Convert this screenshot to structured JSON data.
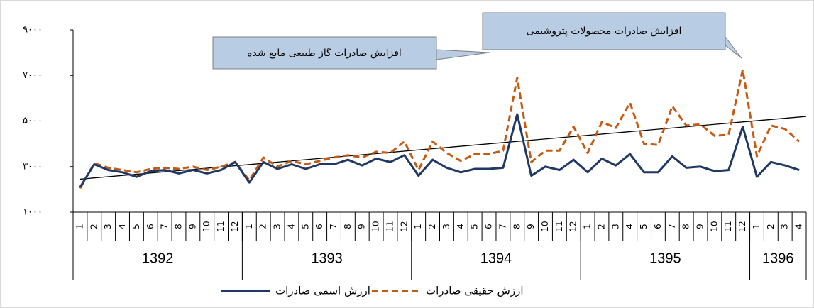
{
  "chart_data": {
    "type": "line",
    "categories": [
      "1",
      "2",
      "3",
      "4",
      "5",
      "6",
      "7",
      "8",
      "9",
      "10",
      "11",
      "12",
      "1",
      "2",
      "3",
      "4",
      "5",
      "6",
      "7",
      "8",
      "9",
      "10",
      "11",
      "12",
      "1",
      "2",
      "3",
      "4",
      "5",
      "6",
      "7",
      "8",
      "9",
      "10",
      "11",
      "12",
      "1",
      "2",
      "3",
      "4",
      "5",
      "6",
      "7",
      "8",
      "9",
      "10",
      "11",
      "12",
      "1",
      "2",
      "3",
      "4"
    ],
    "x_groups": [
      "1392",
      "1393",
      "1394",
      "1395",
      "1396"
    ],
    "series": [
      {
        "name": "ارزش اسمی صادرات",
        "color": "#1f3864",
        "style": "solid",
        "values": [
          2100,
          3100,
          2850,
          2750,
          2550,
          2800,
          2850,
          2700,
          2850,
          2700,
          2850,
          3200,
          2300,
          3200,
          2900,
          3100,
          2900,
          3100,
          3100,
          3300,
          3050,
          3350,
          3200,
          3500,
          2600,
          3300,
          2950,
          2750,
          2900,
          2900,
          2950,
          5300,
          2600,
          3000,
          2850,
          3300,
          2750,
          3350,
          3050,
          3550,
          2750,
          2750,
          3450,
          2950,
          3000,
          2800,
          2850,
          4750,
          2550,
          3200,
          3050,
          2850
        ]
      },
      {
        "name": "ارزش حقیقی صادرات",
        "color": "#c55a11",
        "style": "dashed",
        "values": [
          2050,
          3150,
          2950,
          2850,
          2750,
          2900,
          2950,
          2900,
          3000,
          2850,
          3000,
          3200,
          2400,
          3400,
          3000,
          3250,
          3100,
          3250,
          3400,
          3500,
          3400,
          3650,
          3600,
          4100,
          2850,
          4100,
          3600,
          3250,
          3550,
          3550,
          3700,
          6900,
          3200,
          3700,
          3700,
          4750,
          3600,
          4950,
          4700,
          5800,
          4000,
          3950,
          5650,
          4800,
          4850,
          4350,
          4400,
          7250,
          3450,
          4800,
          4650,
          4100
        ]
      }
    ],
    "trendline": {
      "start": 2450,
      "end": 5200
    },
    "annotations": [
      "افزایش صادرات محصولات پتروشیمی",
      "افزایش صادرات گاز طبیعی مایع شده"
    ],
    "ylim": [
      1000,
      9000
    ],
    "yticks": [
      {
        "value": 1000,
        "label": "۱۰۰۰"
      },
      {
        "value": 3000,
        "label": "۳۰۰۰"
      },
      {
        "value": 5000,
        "label": "۵۰۰۰"
      },
      {
        "value": 7000,
        "label": "۷۰۰۰"
      },
      {
        "value": 9000,
        "label": "۹۰۰۰"
      }
    ],
    "grid": false
  }
}
